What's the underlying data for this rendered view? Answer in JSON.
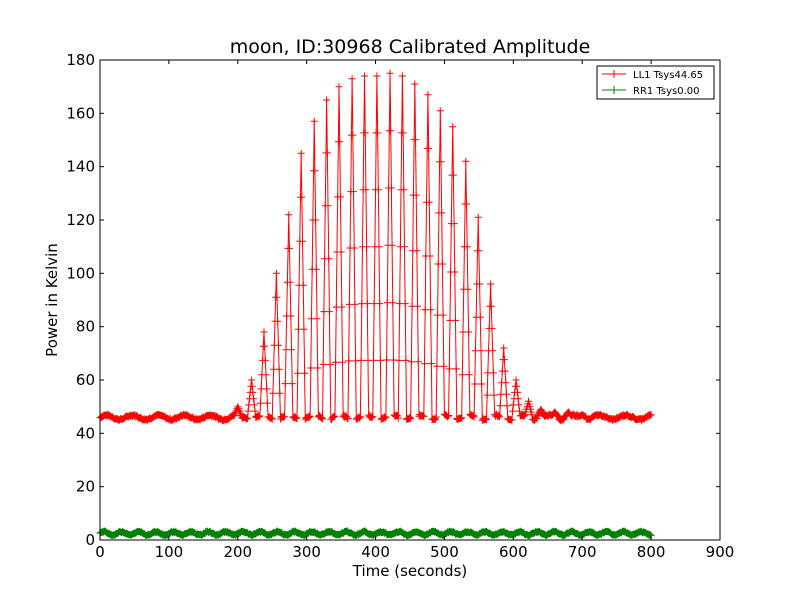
{
  "chart_data": {
    "type": "line",
    "title": "moon, ID:30968 Calibrated Amplitude",
    "xlabel": "Time (seconds)",
    "ylabel": "Power in Kelvin",
    "xlim": [
      0,
      900
    ],
    "ylim": [
      0,
      180
    ],
    "xticks": [
      0,
      100,
      200,
      300,
      400,
      500,
      600,
      700,
      800,
      900
    ],
    "yticks": [
      0,
      20,
      40,
      60,
      80,
      100,
      120,
      140,
      160,
      180
    ],
    "grid": false,
    "legend_position": "top-right",
    "marker": "+",
    "series": [
      {
        "name": "LL1 Tsys44.65",
        "color": "#ff0000",
        "baseline": 46,
        "x_range": [
          0,
          800
        ],
        "peak_envelope": [
          [
            200,
            50
          ],
          [
            220,
            60
          ],
          [
            238,
            78
          ],
          [
            256,
            100
          ],
          [
            274,
            122
          ],
          [
            292,
            145
          ],
          [
            311,
            157
          ],
          [
            329,
            165
          ],
          [
            347,
            170
          ],
          [
            366,
            173
          ],
          [
            384,
            174
          ],
          [
            402,
            174
          ],
          [
            421,
            175
          ],
          [
            439,
            174
          ],
          [
            457,
            171
          ],
          [
            476,
            167
          ],
          [
            494,
            161
          ],
          [
            512,
            155
          ],
          [
            531,
            142
          ],
          [
            549,
            121
          ],
          [
            567,
            96
          ],
          [
            586,
            72
          ],
          [
            604,
            60
          ],
          [
            622,
            52
          ],
          [
            640,
            49
          ],
          [
            660,
            48
          ],
          [
            680,
            48
          ],
          [
            700,
            47
          ],
          [
            720,
            47
          ]
        ]
      },
      {
        "name": "RR1 Tsys0.00",
        "color": "#008000",
        "baseline": 2.5,
        "x_range": [
          0,
          800
        ]
      }
    ]
  }
}
